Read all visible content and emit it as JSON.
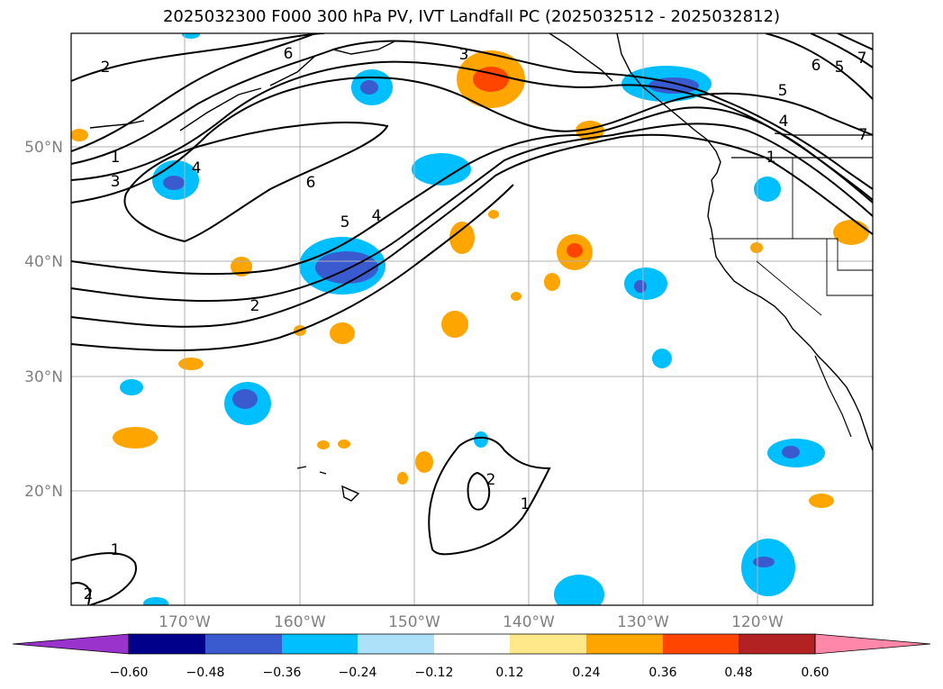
{
  "title": "2025032300 F000 300 hPa PV, IVT Landfall PC (2025032512 - 2025032812)",
  "lat_labels": [
    "50°N",
    "40°N",
    "30°N",
    "20°N"
  ],
  "lon_labels": [
    "170°W",
    "160°W",
    "150°W",
    "140°W",
    "130°W",
    "120°W"
  ],
  "colorbar": {
    "ticks": [
      "−0.60",
      "−0.48",
      "−0.36",
      "−0.24",
      "−0.12",
      "0.12",
      "0.24",
      "0.36",
      "0.48",
      "0.60"
    ],
    "colors": [
      "#9933cc",
      "#00008b",
      "#3a5bd0",
      "#00bfff",
      "#ade1fa",
      "#ffffff",
      "#ffe88a",
      "#ffa500",
      "#ff4500",
      "#b22222",
      "#ff88aa"
    ]
  },
  "contour_labels": [
    "2",
    "1",
    "3",
    "4",
    "6",
    "5",
    "4",
    "2",
    "3",
    "6",
    "5",
    "6",
    "5",
    "4",
    "1",
    "7",
    "2",
    "1",
    "1",
    "2",
    "7"
  ]
}
